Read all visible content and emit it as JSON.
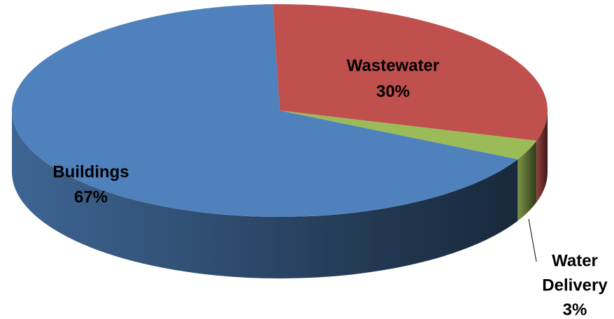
{
  "chart_data": {
    "type": "pie",
    "style": "3d",
    "title": "",
    "slices": [
      {
        "name": "Wastewater",
        "label_lines": [
          "Wastewater"
        ],
        "value_label": "30%",
        "value": 30,
        "color": "#C0504D"
      },
      {
        "name": "Water Delivery",
        "label_lines": [
          "Water",
          "Delivery"
        ],
        "value_label": "3%",
        "value": 3,
        "color": "#9BBB59"
      },
      {
        "name": "Buildings",
        "label_lines": [
          "Buildings"
        ],
        "value_label": "67%",
        "value": 67,
        "color": "#4F81BD"
      }
    ],
    "legend": "none"
  }
}
